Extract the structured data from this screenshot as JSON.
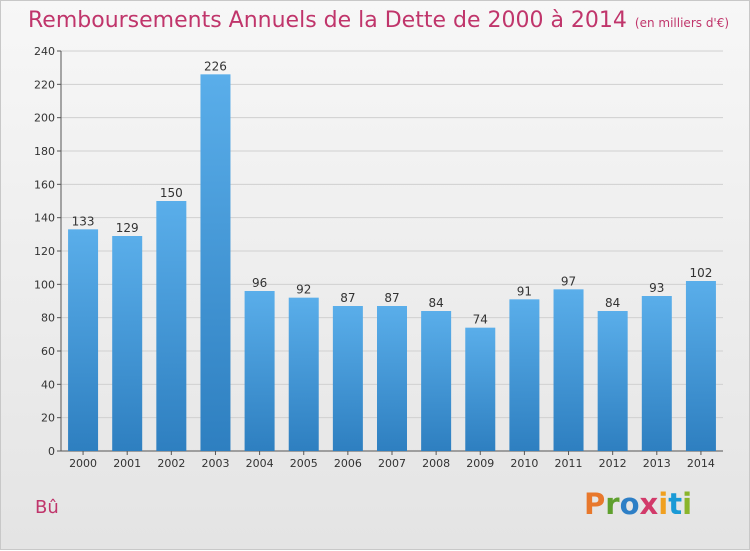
{
  "header": {
    "title": "Remboursements Annuels de la Dette de 2000 à 2014",
    "subtitle": "(en milliers d'€)"
  },
  "footer": {
    "commune": "Bû",
    "logo_letters": [
      "P",
      "r",
      "o",
      "x",
      "i",
      "t",
      "i"
    ],
    "logo_colors": [
      "#e8782c",
      "#5fa02e",
      "#2d7fc6",
      "#d23a6a",
      "#f0a020",
      "#1a9ad6",
      "#8ab52a"
    ]
  },
  "chart_data": {
    "type": "bar",
    "categories": [
      "2000",
      "2001",
      "2002",
      "2003",
      "2004",
      "2005",
      "2006",
      "2007",
      "2008",
      "2009",
      "2010",
      "2011",
      "2012",
      "2013",
      "2014"
    ],
    "values": [
      133,
      129,
      150,
      226,
      96,
      92,
      87,
      87,
      84,
      74,
      91,
      97,
      84,
      93,
      102
    ],
    "value_labels": [
      "133",
      "129",
      "150",
      "226",
      "96",
      "92",
      "87",
      "87",
      "84",
      "74",
      "91",
      "97",
      "84",
      "93",
      "102"
    ],
    "ylim": [
      0,
      240
    ],
    "yticks": [
      "0",
      "20",
      "40",
      "60",
      "80",
      "100",
      "120",
      "140",
      "160",
      "180",
      "200",
      "220",
      "240"
    ],
    "grid": true,
    "colors": {
      "bar_top": "#5aaeea",
      "bar_bottom": "#2e7fc0",
      "title": "#c0356b"
    }
  }
}
